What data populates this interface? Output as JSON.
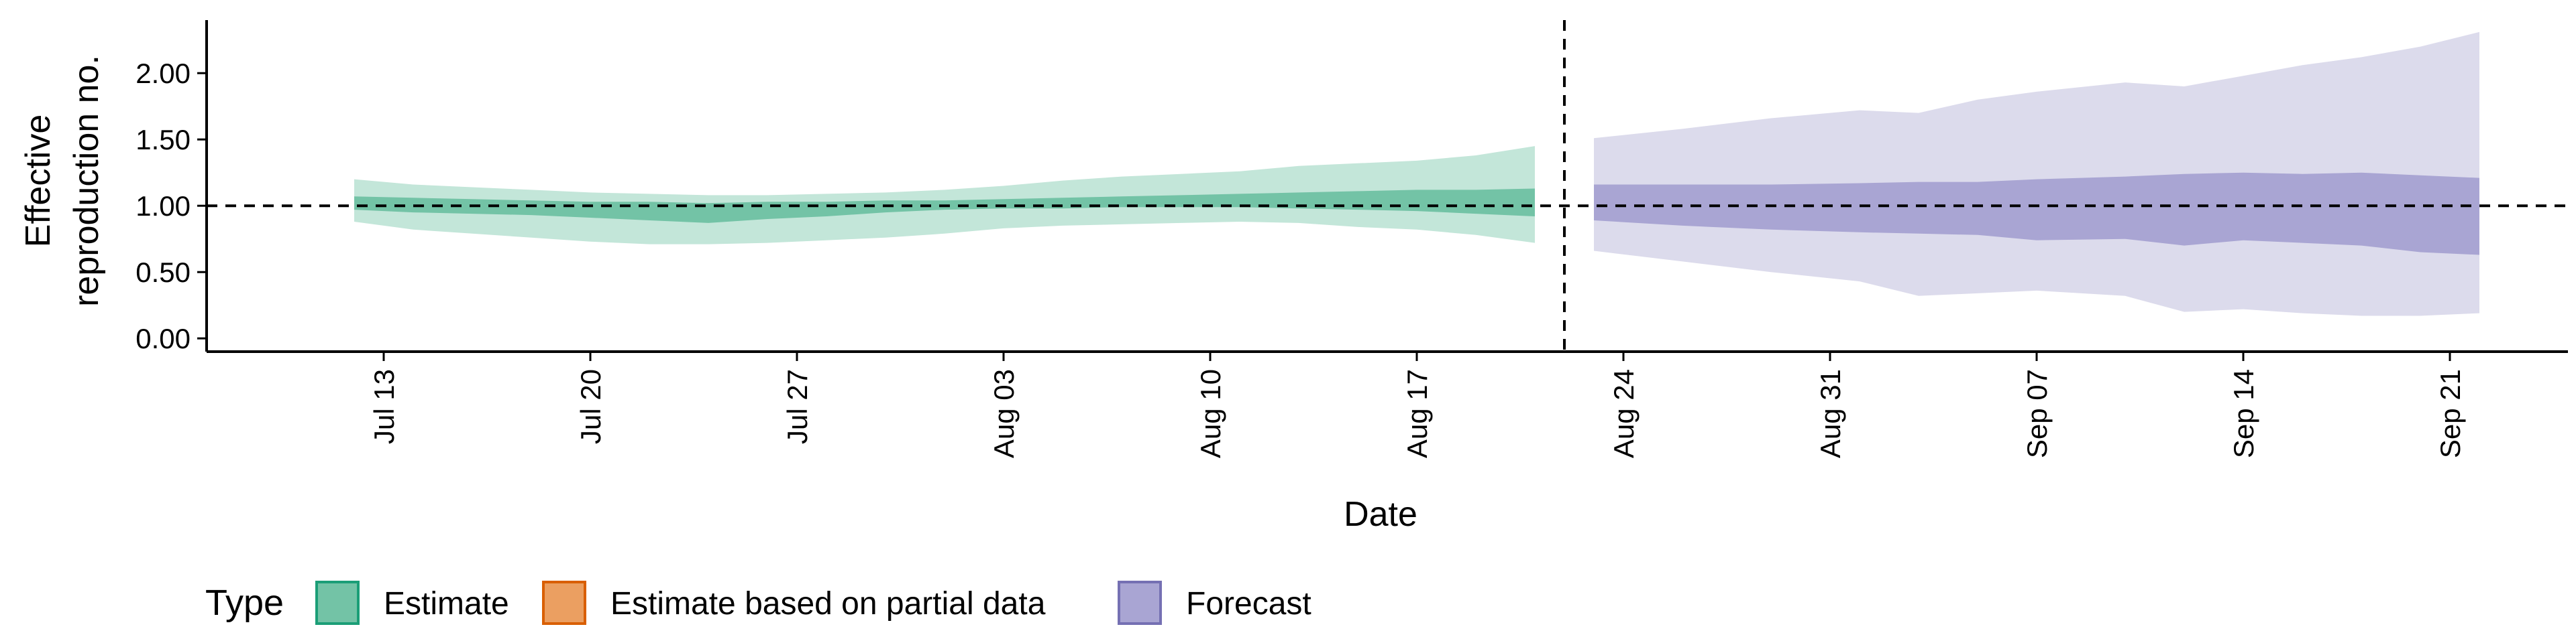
{
  "chart_data": {
    "type": "area",
    "xlabel": "Date",
    "ylabel": [
      "Effective",
      "reproduction no."
    ],
    "x_range": [
      "2020-07-07",
      "2020-09-25"
    ],
    "ylim": [
      -0.1,
      2.4
    ],
    "y_ticks": [
      {
        "value": 0.0,
        "label": "0.00"
      },
      {
        "value": 0.5,
        "label": "0.50"
      },
      {
        "value": 1.0,
        "label": "1.00"
      },
      {
        "value": 1.5,
        "label": "1.50"
      },
      {
        "value": 2.0,
        "label": "2.00"
      }
    ],
    "x_ticks": [
      {
        "date": "2020-07-13",
        "label": "Jul 13"
      },
      {
        "date": "2020-07-20",
        "label": "Jul 20"
      },
      {
        "date": "2020-07-27",
        "label": "Jul 27"
      },
      {
        "date": "2020-08-03",
        "label": "Aug 03"
      },
      {
        "date": "2020-08-10",
        "label": "Aug 10"
      },
      {
        "date": "2020-08-17",
        "label": "Aug 17"
      },
      {
        "date": "2020-08-24",
        "label": "Aug 24"
      },
      {
        "date": "2020-08-31",
        "label": "Aug 31"
      },
      {
        "date": "2020-09-07",
        "label": "Sep 07"
      },
      {
        "date": "2020-09-14",
        "label": "Sep 14"
      },
      {
        "date": "2020-09-21",
        "label": "Sep 21"
      }
    ],
    "reference_hline": 1.0,
    "reference_vline": "2020-08-22",
    "grid": false,
    "legend": {
      "title": "Type",
      "position": "bottom-left",
      "entries": [
        {
          "label": "Estimate",
          "fill": "#73C3A6",
          "stroke": "#1B9E77"
        },
        {
          "label": "Estimate based on partial data",
          "fill": "#EB9F61",
          "stroke": "#D95F02"
        },
        {
          "label": "Forecast",
          "fill": "#A9A5D3",
          "stroke": "#7570B3"
        }
      ]
    },
    "series": [
      {
        "type": "Estimate",
        "outer_color": "#C3E6D9",
        "inner_color": "#73C3A6",
        "points": [
          {
            "date": "2020-07-12",
            "lo90": 0.88,
            "lo50": 0.97,
            "hi50": 1.07,
            "hi90": 1.2
          },
          {
            "date": "2020-07-14",
            "lo90": 0.82,
            "lo50": 0.95,
            "hi50": 1.06,
            "hi90": 1.16
          },
          {
            "date": "2020-07-16",
            "lo90": 0.79,
            "lo50": 0.94,
            "hi50": 1.05,
            "hi90": 1.14
          },
          {
            "date": "2020-07-18",
            "lo90": 0.76,
            "lo50": 0.93,
            "hi50": 1.04,
            "hi90": 1.12
          },
          {
            "date": "2020-07-20",
            "lo90": 0.73,
            "lo50": 0.91,
            "hi50": 1.03,
            "hi90": 1.1
          },
          {
            "date": "2020-07-22",
            "lo90": 0.71,
            "lo50": 0.89,
            "hi50": 1.03,
            "hi90": 1.09
          },
          {
            "date": "2020-07-24",
            "lo90": 0.71,
            "lo50": 0.87,
            "hi50": 1.02,
            "hi90": 1.08
          },
          {
            "date": "2020-07-26",
            "lo90": 0.72,
            "lo50": 0.9,
            "hi50": 1.03,
            "hi90": 1.08
          },
          {
            "date": "2020-07-28",
            "lo90": 0.74,
            "lo50": 0.92,
            "hi50": 1.03,
            "hi90": 1.09
          },
          {
            "date": "2020-07-30",
            "lo90": 0.76,
            "lo50": 0.95,
            "hi50": 1.04,
            "hi90": 1.1
          },
          {
            "date": "2020-08-01",
            "lo90": 0.79,
            "lo50": 0.97,
            "hi50": 1.04,
            "hi90": 1.12
          },
          {
            "date": "2020-08-03",
            "lo90": 0.83,
            "lo50": 0.98,
            "hi50": 1.05,
            "hi90": 1.15
          },
          {
            "date": "2020-08-05",
            "lo90": 0.85,
            "lo50": 0.98,
            "hi50": 1.06,
            "hi90": 1.19
          },
          {
            "date": "2020-08-07",
            "lo90": 0.86,
            "lo50": 0.99,
            "hi50": 1.07,
            "hi90": 1.22
          },
          {
            "date": "2020-08-09",
            "lo90": 0.87,
            "lo50": 0.99,
            "hi50": 1.08,
            "hi90": 1.24
          },
          {
            "date": "2020-08-11",
            "lo90": 0.88,
            "lo50": 0.99,
            "hi50": 1.09,
            "hi90": 1.26
          },
          {
            "date": "2020-08-13",
            "lo90": 0.87,
            "lo50": 0.98,
            "hi50": 1.1,
            "hi90": 1.3
          },
          {
            "date": "2020-08-15",
            "lo90": 0.84,
            "lo50": 0.97,
            "hi50": 1.11,
            "hi90": 1.32
          },
          {
            "date": "2020-08-17",
            "lo90": 0.82,
            "lo50": 0.96,
            "hi50": 1.12,
            "hi90": 1.34
          },
          {
            "date": "2020-08-19",
            "lo90": 0.78,
            "lo50": 0.94,
            "hi50": 1.12,
            "hi90": 1.38
          },
          {
            "date": "2020-08-21",
            "lo90": 0.72,
            "lo50": 0.92,
            "hi50": 1.13,
            "hi90": 1.45
          }
        ]
      },
      {
        "type": "Forecast",
        "outer_color": "#DCDBEC",
        "inner_color": "#A9A5D3",
        "points": [
          {
            "date": "2020-08-23",
            "lo90": 0.66,
            "lo50": 0.89,
            "hi50": 1.16,
            "hi90": 1.51
          },
          {
            "date": "2020-08-26",
            "lo90": 0.58,
            "lo50": 0.85,
            "hi50": 1.16,
            "hi90": 1.58
          },
          {
            "date": "2020-08-29",
            "lo90": 0.5,
            "lo50": 0.82,
            "hi50": 1.16,
            "hi90": 1.66
          },
          {
            "date": "2020-09-01",
            "lo90": 0.43,
            "lo50": 0.8,
            "hi50": 1.17,
            "hi90": 1.72
          },
          {
            "date": "2020-09-03",
            "lo90": 0.32,
            "lo50": 0.79,
            "hi50": 1.18,
            "hi90": 1.7
          },
          {
            "date": "2020-09-05",
            "lo90": 0.34,
            "lo50": 0.78,
            "hi50": 1.18,
            "hi90": 1.8
          },
          {
            "date": "2020-09-07",
            "lo90": 0.36,
            "lo50": 0.74,
            "hi50": 1.2,
            "hi90": 1.86
          },
          {
            "date": "2020-09-10",
            "lo90": 0.32,
            "lo50": 0.75,
            "hi50": 1.22,
            "hi90": 1.93
          },
          {
            "date": "2020-09-12",
            "lo90": 0.2,
            "lo50": 0.7,
            "hi50": 1.24,
            "hi90": 1.9
          },
          {
            "date": "2020-09-14",
            "lo90": 0.22,
            "lo50": 0.74,
            "hi50": 1.25,
            "hi90": 1.98
          },
          {
            "date": "2020-09-16",
            "lo90": 0.19,
            "lo50": 0.72,
            "hi50": 1.24,
            "hi90": 2.06
          },
          {
            "date": "2020-09-18",
            "lo90": 0.17,
            "lo50": 0.7,
            "hi50": 1.25,
            "hi90": 2.12
          },
          {
            "date": "2020-09-20",
            "lo90": 0.17,
            "lo50": 0.65,
            "hi50": 1.23,
            "hi90": 2.2
          },
          {
            "date": "2020-09-22",
            "lo90": 0.19,
            "lo50": 0.63,
            "hi50": 1.21,
            "hi90": 2.31
          }
        ]
      }
    ]
  }
}
